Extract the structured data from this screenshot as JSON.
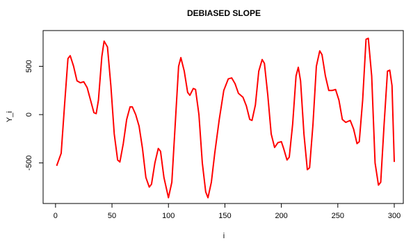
{
  "chart_data": {
    "type": "line",
    "title": "DEBIASED SLOPE",
    "x_label": "i",
    "y_label": "Y_i",
    "x": [
      1,
      5,
      8,
      11,
      13,
      16,
      19,
      22,
      25,
      28,
      31,
      34,
      36,
      38,
      41,
      43,
      46,
      49,
      52,
      55,
      57,
      60,
      63,
      66,
      68,
      71,
      74,
      77,
      80,
      83,
      85,
      88,
      91,
      93,
      96,
      100,
      103,
      106,
      109,
      111,
      114,
      117,
      119,
      122,
      124,
      127,
      130,
      133,
      135,
      138,
      141,
      145,
      149,
      153,
      156,
      159,
      162,
      166,
      169,
      172,
      174,
      177,
      180,
      183,
      185,
      188,
      191,
      194,
      197,
      200,
      202,
      205,
      207,
      210,
      213,
      215,
      217,
      220,
      223,
      225,
      228,
      231,
      234,
      236,
      239,
      242,
      245,
      248,
      251,
      254,
      257,
      261,
      264,
      267,
      269,
      272,
      275,
      277,
      280,
      283,
      286,
      288,
      291,
      294,
      296,
      298,
      300
    ],
    "series": [
      {
        "name": "Y_i",
        "color": "#ff0000",
        "values": [
          -530,
          -400,
          100,
          580,
          610,
          500,
          350,
          330,
          340,
          280,
          150,
          20,
          10,
          150,
          600,
          760,
          700,
          300,
          -200,
          -470,
          -490,
          -300,
          -50,
          80,
          80,
          0,
          -120,
          -350,
          -650,
          -750,
          -720,
          -500,
          -350,
          -380,
          -650,
          -860,
          -700,
          -100,
          500,
          590,
          450,
          230,
          200,
          270,
          260,
          0,
          -500,
          -800,
          -860,
          -700,
          -400,
          -50,
          250,
          370,
          380,
          320,
          220,
          180,
          90,
          -50,
          -60,
          100,
          450,
          570,
          530,
          200,
          -200,
          -340,
          -290,
          -280,
          -350,
          -470,
          -440,
          -100,
          400,
          490,
          350,
          -200,
          -570,
          -550,
          -100,
          500,
          660,
          620,
          400,
          250,
          250,
          260,
          150,
          -50,
          -80,
          -60,
          -150,
          -300,
          -280,
          150,
          780,
          790,
          400,
          -500,
          -730,
          -700,
          -100,
          450,
          460,
          300,
          -490
        ]
      }
    ],
    "xlim": [
      -11,
      308
    ],
    "ylim": [
      -920,
      870
    ],
    "xticks": [
      0,
      50,
      100,
      150,
      200,
      250,
      300
    ],
    "yticks": [
      -500,
      0,
      500
    ]
  }
}
